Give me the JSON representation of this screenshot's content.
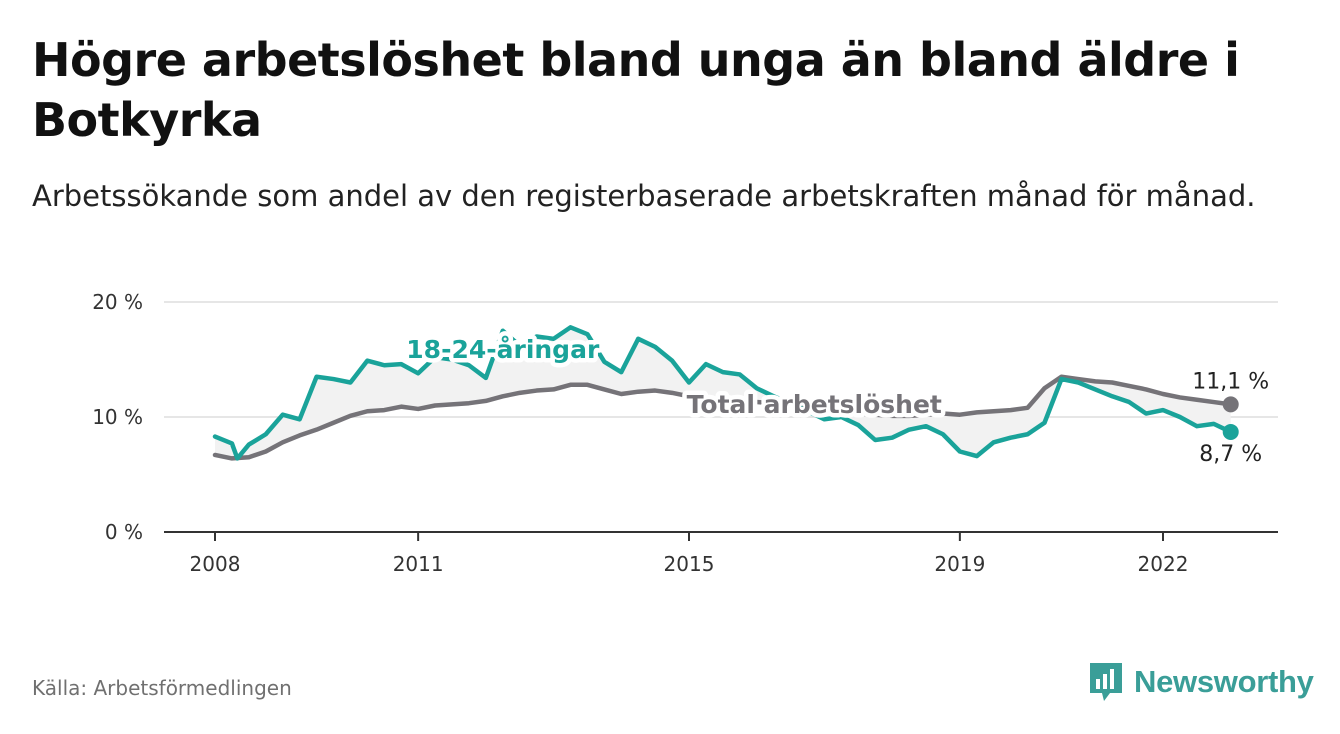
{
  "title": "Högre arbetslöshet bland unga än bland äldre i Botkyrka",
  "subtitle": "Arbetssökande som andel av den registerbaserade arbetskraften månad för månad.",
  "source": "Källa: Arbetsförmedlingen",
  "brand": {
    "name": "Newsworthy",
    "icon": "bar-chart-logo-icon",
    "color": "#3a9e98"
  },
  "colors": {
    "youth": "#1aa39a",
    "total": "#757378",
    "grid": "#dddddd",
    "axis": "#333333",
    "fill": "#f2f2f2"
  },
  "chart_data": {
    "type": "line",
    "title": "Högre arbetslöshet bland unga än bland äldre i Botkyrka",
    "xlabel": "",
    "ylabel": "",
    "xlim": [
      2007.5,
      2023.9
    ],
    "ylim": [
      0,
      20
    ],
    "yticks": [
      {
        "value": 0,
        "label": "0 %"
      },
      {
        "value": 10,
        "label": "10 %"
      },
      {
        "value": 20,
        "label": "20 %"
      }
    ],
    "xticks": [
      {
        "value": 2008,
        "label": "2008"
      },
      {
        "value": 2011,
        "label": "2011"
      },
      {
        "value": 2015,
        "label": "2015"
      },
      {
        "value": 2019,
        "label": "2019"
      },
      {
        "value": 2022,
        "label": "2022"
      }
    ],
    "grid": true,
    "series": [
      {
        "name": "18-24-åringar",
        "label": "18-24-åringar",
        "end_label": "8,7 %",
        "x": [
          2008.0,
          2008.25,
          2008.33,
          2008.5,
          2008.75,
          2009.0,
          2009.25,
          2009.5,
          2009.75,
          2010.0,
          2010.25,
          2010.5,
          2010.75,
          2011.0,
          2011.25,
          2011.5,
          2011.75,
          2012.0,
          2012.25,
          2012.5,
          2012.75,
          2013.0,
          2013.25,
          2013.5,
          2013.75,
          2014.0,
          2014.25,
          2014.5,
          2014.75,
          2015.0,
          2015.25,
          2015.5,
          2015.75,
          2016.0,
          2016.25,
          2016.5,
          2016.75,
          2017.0,
          2017.25,
          2017.5,
          2017.75,
          2018.0,
          2018.25,
          2018.5,
          2018.75,
          2019.0,
          2019.25,
          2019.5,
          2019.75,
          2020.0,
          2020.25,
          2020.5,
          2020.75,
          2021.0,
          2021.25,
          2021.5,
          2021.75,
          2022.0,
          2022.25,
          2022.5,
          2022.75,
          2023.0
        ],
        "values": [
          8.3,
          7.7,
          6.4,
          7.6,
          8.5,
          10.2,
          9.8,
          13.5,
          13.3,
          13.0,
          14.9,
          14.5,
          14.6,
          13.8,
          15.2,
          15.0,
          14.5,
          13.4,
          17.5,
          16.2,
          17.0,
          16.8,
          17.8,
          17.2,
          14.8,
          13.9,
          16.8,
          16.1,
          14.9,
          13.0,
          14.6,
          13.9,
          13.7,
          12.5,
          11.8,
          11.2,
          10.5,
          9.8,
          10.0,
          9.3,
          8.0,
          8.2,
          8.9,
          9.2,
          8.5,
          7.0,
          6.6,
          7.8,
          8.2,
          8.5,
          9.5,
          13.3,
          13.0,
          12.4,
          11.8,
          11.3,
          10.3,
          10.6,
          10.0,
          9.2,
          9.4,
          8.7
        ]
      },
      {
        "name": "Total arbetslöshet",
        "label": "Total arbetslöshet",
        "end_label": "11,1 %",
        "x": [
          2008.0,
          2008.25,
          2008.5,
          2008.75,
          2009.0,
          2009.25,
          2009.5,
          2009.75,
          2010.0,
          2010.25,
          2010.5,
          2010.75,
          2011.0,
          2011.25,
          2011.5,
          2011.75,
          2012.0,
          2012.25,
          2012.5,
          2012.75,
          2013.0,
          2013.25,
          2013.5,
          2013.75,
          2014.0,
          2014.25,
          2014.5,
          2014.75,
          2015.0,
          2015.25,
          2015.5,
          2015.75,
          2016.0,
          2016.25,
          2016.5,
          2016.75,
          2017.0,
          2017.25,
          2017.5,
          2017.75,
          2018.0,
          2018.25,
          2018.5,
          2018.75,
          2019.0,
          2019.25,
          2019.5,
          2019.75,
          2020.0,
          2020.25,
          2020.5,
          2020.75,
          2021.0,
          2021.25,
          2021.5,
          2021.75,
          2022.0,
          2022.25,
          2022.5,
          2022.75,
          2023.0
        ],
        "values": [
          6.7,
          6.4,
          6.5,
          7.0,
          7.8,
          8.4,
          8.9,
          9.5,
          10.1,
          10.5,
          10.6,
          10.9,
          10.7,
          11.0,
          11.1,
          11.2,
          11.4,
          11.8,
          12.1,
          12.3,
          12.4,
          12.8,
          12.8,
          12.4,
          12.0,
          12.2,
          12.3,
          12.1,
          11.8,
          11.6,
          11.6,
          11.5,
          11.3,
          11.2,
          11.0,
          10.8,
          10.6,
          10.4,
          10.3,
          10.2,
          10.1,
          10.1,
          10.2,
          10.3,
          10.2,
          10.4,
          10.5,
          10.6,
          10.8,
          12.5,
          13.5,
          13.3,
          13.1,
          13.0,
          12.7,
          12.4,
          12.0,
          11.7,
          11.5,
          11.3,
          11.1
        ]
      }
    ]
  }
}
